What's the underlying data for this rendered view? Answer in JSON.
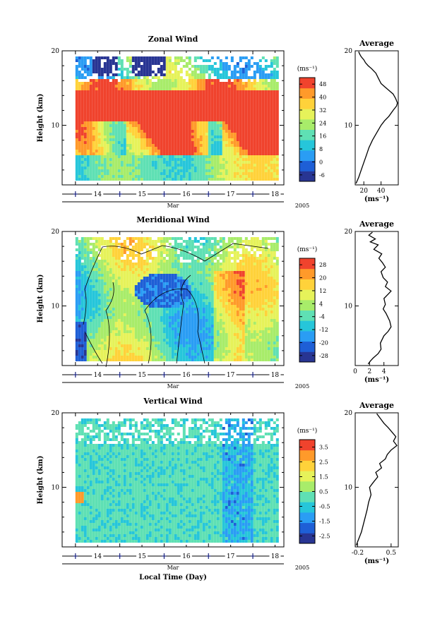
{
  "chart_data": [
    {
      "type": "heatmap",
      "title": "Zonal Wind",
      "ylabel": "Height (km)",
      "ylim": [
        2,
        20
      ],
      "yticks": [
        10,
        20
      ],
      "xlim": [
        13.7,
        18.7
      ],
      "xticks": [
        14,
        15,
        16,
        17,
        18
      ],
      "xticklabels": [
        "14",
        "15",
        "16",
        "17",
        "18"
      ],
      "xlabel_sub": "Mar",
      "year": "2005",
      "colorbar": {
        "unit": "(ms⁻¹)",
        "levels": [
          -6,
          0,
          8,
          16,
          24,
          32,
          40,
          48
        ],
        "ticklabels": [
          "-6",
          "0",
          "8",
          "16",
          "24",
          "32",
          "40",
          "48"
        ]
      },
      "profile": {
        "title": "Average",
        "xlabel": "(ms⁻¹)",
        "xlim": [
          10,
          60
        ],
        "xticks": [
          20,
          40
        ],
        "xticklabels": [
          "20",
          "40"
        ],
        "ylim": [
          2,
          20
        ],
        "yticks": [
          10,
          20
        ],
        "points": [
          [
            11,
            2.2
          ],
          [
            14,
            3
          ],
          [
            17,
            4
          ],
          [
            20,
            5
          ],
          [
            23,
            6
          ],
          [
            26,
            7
          ],
          [
            30,
            8
          ],
          [
            35,
            9
          ],
          [
            40,
            10
          ],
          [
            44,
            10.6
          ],
          [
            49,
            11.2
          ],
          [
            54,
            12
          ],
          [
            58,
            12.6
          ],
          [
            59,
            13
          ],
          [
            57,
            13.6
          ],
          [
            54,
            14.2
          ],
          [
            50,
            14.6
          ],
          [
            45,
            15.1
          ],
          [
            40,
            15.6
          ],
          [
            37,
            16.3
          ],
          [
            34,
            17
          ],
          [
            29,
            17.6
          ],
          [
            25,
            18
          ],
          [
            22,
            18.4
          ],
          [
            20,
            18.8
          ],
          [
            17,
            19.2
          ],
          [
            15,
            19.6
          ],
          [
            14,
            19.9
          ]
        ]
      }
    },
    {
      "type": "heatmap",
      "title": "Meridional Wind",
      "ylabel": "Height (km)",
      "ylim": [
        2,
        20
      ],
      "yticks": [
        10,
        20
      ],
      "xlim": [
        13.7,
        18.7
      ],
      "xticks": [
        14,
        15,
        16,
        17,
        18
      ],
      "xticklabels": [
        "14",
        "15",
        "16",
        "17",
        "18"
      ],
      "xlabel_sub": "Mar",
      "year": "2005",
      "colorbar": {
        "unit": "(ms⁻¹)",
        "levels": [
          -28,
          -20,
          -12,
          -4,
          4,
          12,
          20,
          28
        ],
        "ticklabels": [
          "-28",
          "-20",
          "-12",
          "-4",
          "4",
          "12",
          "20",
          "28"
        ]
      },
      "profile": {
        "title": "Average",
        "xlabel": "(ms⁻¹)",
        "xlim": [
          0,
          6
        ],
        "xticks": [
          0,
          2,
          4
        ],
        "xticklabels": [
          "0",
          "2",
          "4"
        ],
        "ylim": [
          2,
          20
        ],
        "yticks": [
          10,
          20
        ],
        "points": [
          [
            1.8,
            2.2
          ],
          [
            2.1,
            2.6
          ],
          [
            2.5,
            3
          ],
          [
            3.2,
            3.6
          ],
          [
            3.6,
            4.2
          ],
          [
            3.5,
            5
          ],
          [
            4.0,
            6
          ],
          [
            4.6,
            6.6
          ],
          [
            5.0,
            7.2
          ],
          [
            4.8,
            8
          ],
          [
            4.3,
            9
          ],
          [
            3.9,
            9.6
          ],
          [
            4.2,
            10.2
          ],
          [
            4.0,
            11
          ],
          [
            4.6,
            11.6
          ],
          [
            5.0,
            12
          ],
          [
            4.2,
            12.6
          ],
          [
            4.5,
            13.2
          ],
          [
            3.9,
            13.8
          ],
          [
            3.6,
            14.6
          ],
          [
            4.2,
            15.2
          ],
          [
            3.8,
            15.8
          ],
          [
            3.3,
            16.4
          ],
          [
            3.7,
            17
          ],
          [
            2.6,
            17.6
          ],
          [
            3.2,
            18.2
          ],
          [
            2.1,
            18.6
          ],
          [
            2.8,
            19
          ],
          [
            1.9,
            19.5
          ],
          [
            2.4,
            19.9
          ]
        ]
      }
    },
    {
      "type": "heatmap",
      "title": "Vertical Wind",
      "ylabel": "Height (km)",
      "ylim": [
        2,
        20
      ],
      "yticks": [
        10,
        20
      ],
      "xlim": [
        13.7,
        18.7
      ],
      "xticks": [
        14,
        15,
        16,
        17,
        18
      ],
      "xticklabels": [
        "14",
        "15",
        "16",
        "17",
        "18"
      ],
      "xlabel_sub": "Mar",
      "xlabel": "Local Time (Day)",
      "year": "2005",
      "colorbar": {
        "unit": "(ms⁻¹)",
        "levels": [
          -2.5,
          -1.5,
          -0.5,
          0.5,
          1.5,
          2.5,
          3.5
        ],
        "ticklabels": [
          "-2.5",
          "-1.5",
          "-0.5",
          "0.5",
          "1.5",
          "2.5",
          "3.5"
        ]
      },
      "profile": {
        "title": "Average",
        "xlabel": "(ms⁻¹)",
        "xlim": [
          -0.25,
          0.65
        ],
        "xticks": [
          -0.2,
          0.5
        ],
        "xticklabels": [
          "-0.2",
          "0.5"
        ],
        "ylim": [
          2,
          20
        ],
        "yticks": [
          10,
          20
        ],
        "points": [
          [
            -0.23,
            2.2
          ],
          [
            -0.18,
            3
          ],
          [
            -0.12,
            4
          ],
          [
            -0.08,
            5
          ],
          [
            -0.04,
            6
          ],
          [
            0.0,
            7
          ],
          [
            0.03,
            8
          ],
          [
            0.08,
            9
          ],
          [
            0.05,
            10
          ],
          [
            0.12,
            10.6
          ],
          [
            0.22,
            11.4
          ],
          [
            0.18,
            12
          ],
          [
            0.3,
            12.6
          ],
          [
            0.26,
            13.2
          ],
          [
            0.38,
            13.8
          ],
          [
            0.42,
            14.4
          ],
          [
            0.5,
            15
          ],
          [
            0.62,
            15.6
          ],
          [
            0.55,
            16.2
          ],
          [
            0.6,
            16.8
          ],
          [
            0.52,
            17.4
          ],
          [
            0.44,
            18
          ],
          [
            0.35,
            18.6
          ],
          [
            0.28,
            19.2
          ],
          [
            0.2,
            19.9
          ]
        ]
      }
    }
  ],
  "colors": {
    "scale": [
      "#283593",
      "#1e5fd6",
      "#2a9df4",
      "#26c6da",
      "#5fe0b4",
      "#a8ec6a",
      "#e6f25a",
      "#ffd23a",
      "#ff9a2a",
      "#f0432d"
    ],
    "contour": "#000000",
    "marker": "#1a237e"
  }
}
